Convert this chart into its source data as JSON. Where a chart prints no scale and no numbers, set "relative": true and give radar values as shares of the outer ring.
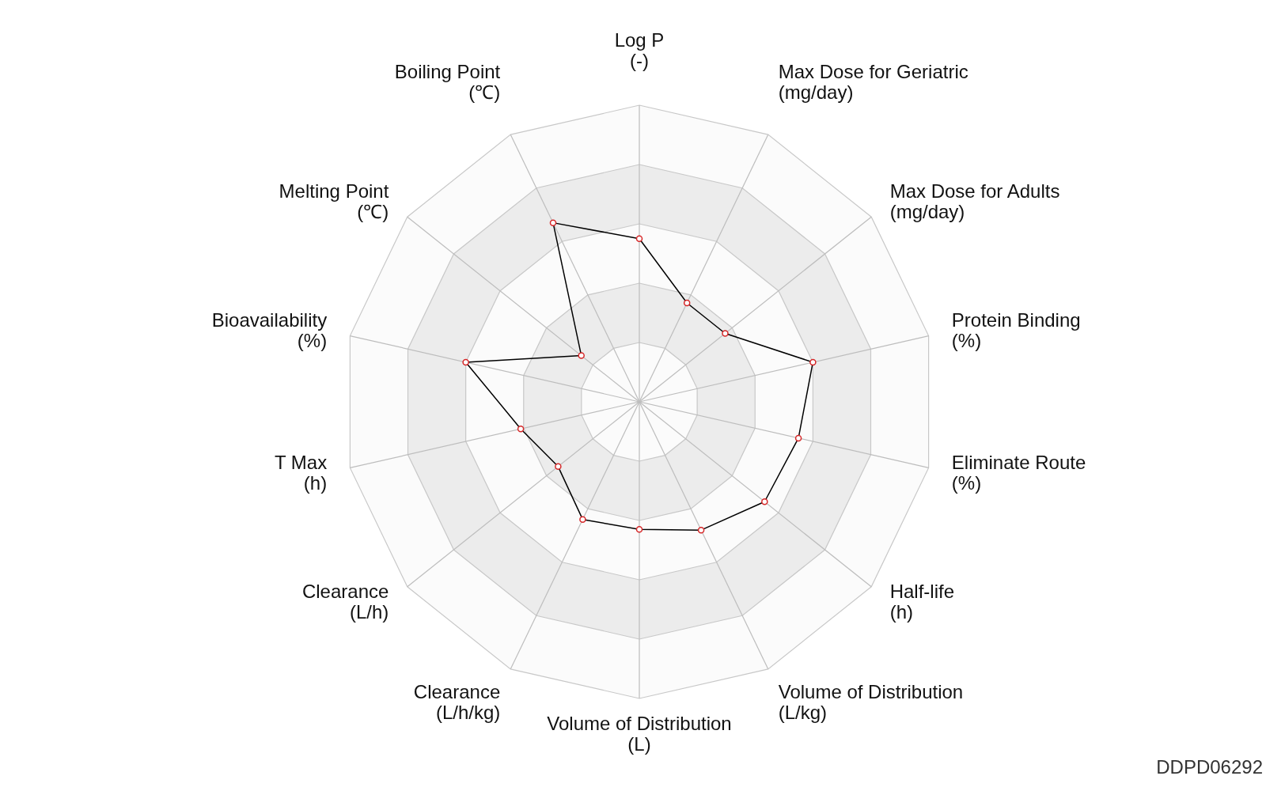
{
  "chart_data": {
    "type": "radar",
    "relative": true,
    "marker": "circle",
    "categories": [
      "Log P\n(-)",
      "Max Dose for Geriatric\n(mg/day)",
      "Max Dose for Adults\n(mg/day)",
      "Protein Binding\n(%)",
      "Eliminate Route\n(%)",
      "Half-life\n(h)",
      "Volume of Distribution\n(L/kg)",
      "Volume of Distribution\n(L)",
      "Clearance\n(L/h/kg)",
      "Clearance\n(L/h)",
      "T Max\n(h)",
      "Bioavailability\n(%)",
      "Melting Point\n(℃)",
      "Boiling Point\n(℃)"
    ],
    "series": [
      {
        "color": "#000000",
        "values": [
          0.55,
          0.37,
          0.37,
          0.6,
          0.55,
          0.54,
          0.48,
          0.43,
          0.44,
          0.35,
          0.41,
          0.6,
          0.25,
          0.67
        ]
      }
    ],
    "annotations": [
      "DDPD06292"
    ]
  }
}
